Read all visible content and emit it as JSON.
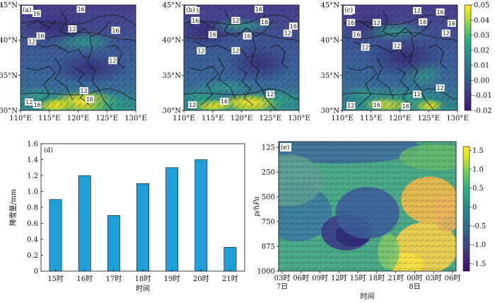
{
  "chart_data": [
    {
      "id": "a",
      "type": "heatmap",
      "panel_label": "(a)",
      "x_ticks": [
        "110°E",
        "115°E",
        "120°E",
        "125°E",
        "130°E"
      ],
      "y_ticks": [
        "30°N",
        "35°N",
        "40°N",
        "45°N"
      ],
      "xlim": [
        110,
        130
      ],
      "ylim": [
        30,
        45
      ],
      "contour_labels": [
        {
          "text": "16",
          "lon": 112.8,
          "lat": 43.8
        },
        {
          "text": "16",
          "lon": 120.5,
          "lat": 44.4
        },
        {
          "text": "16",
          "lon": 126.5,
          "lat": 41.4
        },
        {
          "text": "12",
          "lon": 119.0,
          "lat": 41.6
        },
        {
          "text": "16",
          "lon": 113.5,
          "lat": 40.6
        },
        {
          "text": "12",
          "lon": 112.0,
          "lat": 39.8
        },
        {
          "text": "12",
          "lon": 126.0,
          "lat": 37.1
        },
        {
          "text": "12",
          "lon": 121.0,
          "lat": 32.8
        },
        {
          "text": "16",
          "lon": 122.0,
          "lat": 31.6
        },
        {
          "text": "12",
          "lon": 111.5,
          "lat": 31.2
        },
        {
          "text": "16",
          "lon": 112.9,
          "lat": 30.8
        }
      ]
    },
    {
      "id": "b",
      "type": "heatmap",
      "panel_label": "(b)",
      "x_ticks": [
        "110°E",
        "115°E",
        "120°E",
        "125°E",
        "130°E"
      ],
      "y_ticks": [
        "30°N",
        "35°N",
        "40°N",
        "45°N"
      ],
      "xlim": [
        110,
        130
      ],
      "ylim": [
        30,
        45
      ],
      "contour_labels": [
        {
          "text": "16",
          "lon": 112.0,
          "lat": 44.2
        },
        {
          "text": "16",
          "lon": 123.0,
          "lat": 44.4
        },
        {
          "text": "16",
          "lon": 112.0,
          "lat": 42.8
        },
        {
          "text": "12",
          "lon": 119.0,
          "lat": 42.8
        },
        {
          "text": "16",
          "lon": 124.0,
          "lat": 42.6
        },
        {
          "text": "16",
          "lon": 115.0,
          "lat": 40.8
        },
        {
          "text": "16",
          "lon": 121.0,
          "lat": 40.6
        },
        {
          "text": "12",
          "lon": 128.0,
          "lat": 41.0
        },
        {
          "text": "16",
          "lon": 129.0,
          "lat": 42.0
        },
        {
          "text": "12",
          "lon": 113.0,
          "lat": 38.5
        },
        {
          "text": "12",
          "lon": 119.0,
          "lat": 38.5
        },
        {
          "text": "12",
          "lon": 125.0,
          "lat": 32.3
        },
        {
          "text": "16",
          "lon": 117.0,
          "lat": 31.3
        },
        {
          "text": "12",
          "lon": 111.5,
          "lat": 30.8
        }
      ]
    },
    {
      "id": "c",
      "type": "heatmap",
      "panel_label": "(c)",
      "x_ticks": [
        "110°E",
        "115°E",
        "120°E",
        "125°E",
        "130°E"
      ],
      "y_ticks": [
        "30°N",
        "35°N",
        "40°N",
        "45°N"
      ],
      "xlim": [
        110,
        130
      ],
      "ylim": [
        30,
        45
      ],
      "colorbar": {
        "ticks": [
          "0.04",
          "0.03",
          "0.02",
          "0.01",
          "0.00",
          "-0.01",
          "-0.02"
        ],
        "top_label": "0.05",
        "range": [
          -0.02,
          0.05
        ]
      },
      "contour_labels": [
        {
          "text": "12",
          "lon": 111.0,
          "lat": 44.1
        },
        {
          "text": "12",
          "lon": 123.0,
          "lat": 44.2
        },
        {
          "text": "16",
          "lon": 127.0,
          "lat": 44.0
        },
        {
          "text": "16",
          "lon": 111.5,
          "lat": 42.5
        },
        {
          "text": "12",
          "lon": 116.0,
          "lat": 42.5
        },
        {
          "text": "16",
          "lon": 124.0,
          "lat": 42.6
        },
        {
          "text": "16",
          "lon": 129.0,
          "lat": 42.4
        },
        {
          "text": "16",
          "lon": 112.5,
          "lat": 40.8
        },
        {
          "text": "12",
          "lon": 128.0,
          "lat": 41.0
        },
        {
          "text": "12",
          "lon": 114.0,
          "lat": 39.0
        },
        {
          "text": "12",
          "lon": 119.5,
          "lat": 39.2
        },
        {
          "text": "12",
          "lon": 127.0,
          "lat": 33.2
        },
        {
          "text": "12",
          "lon": 123.0,
          "lat": 32.3
        },
        {
          "text": "12",
          "lon": 111.5,
          "lat": 30.7
        },
        {
          "text": "16",
          "lon": 116.0,
          "lat": 30.8
        },
        {
          "text": "16",
          "lon": 121.0,
          "lat": 30.6
        }
      ]
    },
    {
      "id": "d",
      "type": "bar",
      "panel_label": "(d)",
      "categories": [
        "15时",
        "16时",
        "17时",
        "18时",
        "19时",
        "20时",
        "21时"
      ],
      "values": [
        0.9,
        1.2,
        0.7,
        1.1,
        1.3,
        1.4,
        0.3
      ],
      "ylim": [
        0,
        1.6
      ],
      "y_ticks": [
        "0",
        "0.2",
        "0.4",
        "0.6",
        "0.8",
        "1.0",
        "1.2",
        "1.4",
        "1.6"
      ],
      "xlabel": "时间",
      "ylabel": "降雪量/mm",
      "bar_color": "#1e9fd8"
    },
    {
      "id": "e",
      "type": "heatmap",
      "panel_label": "(e)",
      "x_ticks": [
        "03时",
        "06时",
        "09时",
        "12时",
        "15时",
        "18时",
        "21时",
        "00时",
        "03时",
        "06时"
      ],
      "x_sub": [
        "7日",
        "",
        "",
        "",
        "",
        "",
        "",
        "8日",
        "",
        ""
      ],
      "y_ticks": [
        "125",
        "250",
        "500",
        "750",
        "875",
        "1000"
      ],
      "xlabel": "时间",
      "ylabel": "p/hPa",
      "colorbar": {
        "ticks": [
          "1.5",
          "1.0",
          "0.5",
          "0",
          "-0.5",
          "-1.0",
          "-1.5"
        ],
        "range": [
          -1.7,
          1.6
        ]
      }
    }
  ]
}
